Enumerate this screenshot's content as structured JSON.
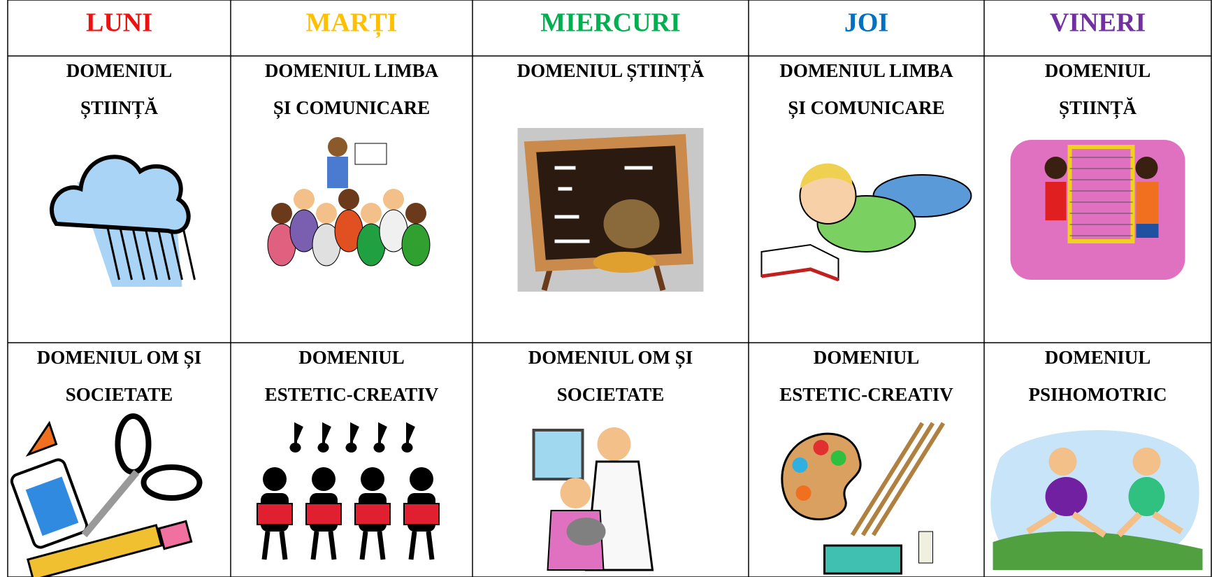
{
  "table": {
    "header": [
      {
        "text": "LUNI",
        "color": "#ee1111"
      },
      {
        "text": "MARȚI",
        "color": "#ffc000"
      },
      {
        "text": "MIERCURI",
        "color": "#00b050"
      },
      {
        "text": "JOI",
        "color": "#0070c0"
      },
      {
        "text": "VINERI",
        "color": "#7030a0"
      }
    ],
    "rows": [
      [
        [
          "DOMENIUL",
          "ȘTIINȚĂ"
        ],
        [
          "DOMENIUL LIMBA",
          "ȘI COMUNICARE"
        ],
        [
          "DOMENIUL ȘTIINȚĂ"
        ],
        [
          "DOMENIUL LIMBA",
          "ȘI COMUNICARE"
        ],
        [
          "DOMENIUL",
          "ȘTIINȚĂ"
        ]
      ],
      [
        [
          "DOMENIUL OM ȘI",
          "SOCIETATE"
        ],
        [
          "DOMENIUL",
          "ESTETIC-CREATIV"
        ],
        [
          "DOMENIUL OM ȘI",
          "SOCIETATE"
        ],
        [
          "DOMENIUL",
          "ESTETIC-CREATIV"
        ],
        [
          "DOMENIUL",
          "PSIHOMOTRIC"
        ]
      ]
    ]
  }
}
